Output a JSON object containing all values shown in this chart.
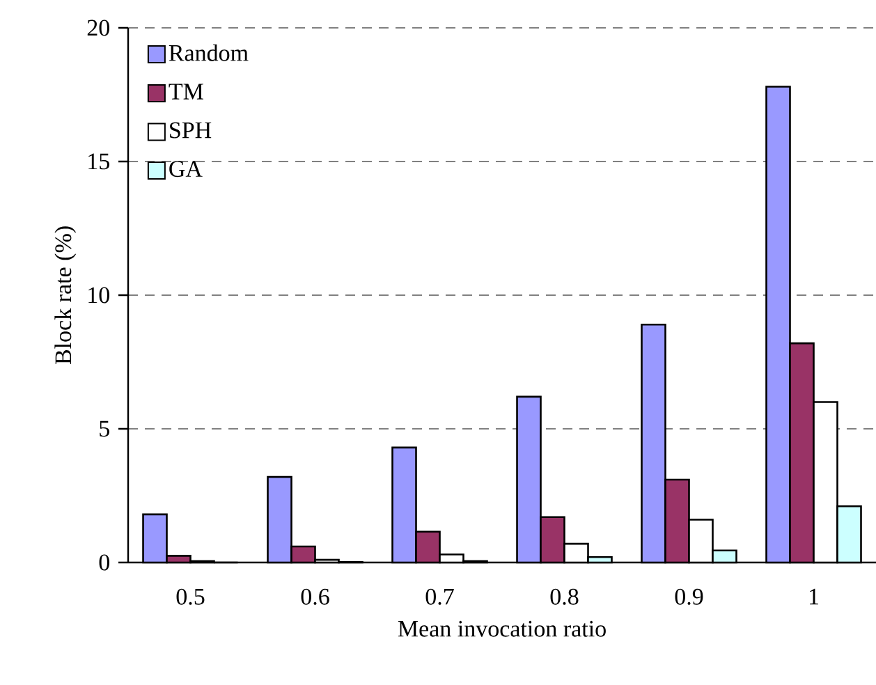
{
  "chart_data": {
    "type": "bar",
    "xlabel": "Mean invocation ratio",
    "ylabel": "Block rate (%)",
    "categories": [
      "0.5",
      "0.6",
      "0.7",
      "0.8",
      "0.9",
      "1"
    ],
    "series": [
      {
        "name": "Random",
        "color": "#9999ff",
        "values": [
          1.8,
          3.2,
          4.3,
          6.2,
          8.9,
          17.8
        ]
      },
      {
        "name": "TM",
        "color": "#993366",
        "values": [
          0.25,
          0.6,
          1.15,
          1.7,
          3.1,
          8.2
        ]
      },
      {
        "name": "SPH",
        "color": "#ffffff",
        "values": [
          0.05,
          0.1,
          0.3,
          0.7,
          1.6,
          6.0
        ]
      },
      {
        "name": "GA",
        "color": "#ccffff",
        "values": [
          0,
          0.02,
          0.05,
          0.2,
          0.45,
          2.1
        ]
      }
    ],
    "ylim": [
      0,
      20
    ],
    "yticks": [
      0,
      5,
      10,
      15,
      20
    ],
    "grid": "y",
    "legend": "top left"
  }
}
